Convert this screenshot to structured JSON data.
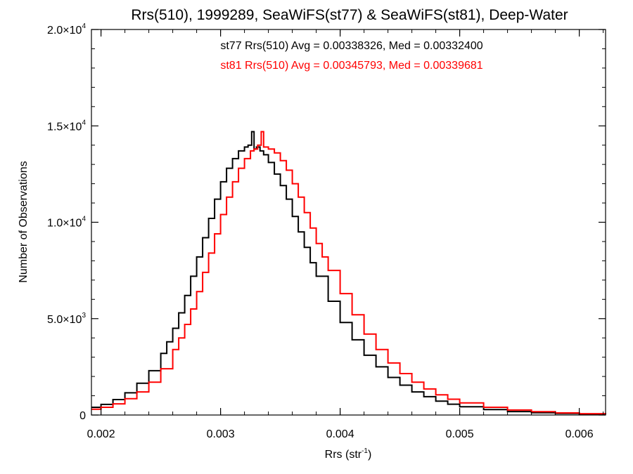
{
  "chart_data": {
    "type": "line",
    "title": "Rrs(510), 1999289, SeaWiFS(st77) & SeaWiFS(st81), Deep-Water",
    "xlabel": "Rrs (str",
    "xlabel_sup": "-1",
    "xlabel_close": ")",
    "ylabel": "Number of Observations",
    "xlim": [
      0.00192,
      0.00622
    ],
    "ylim": [
      0,
      20000
    ],
    "x_ticks": [
      {
        "value": 0.002,
        "label": "0.002"
      },
      {
        "value": 0.003,
        "label": "0.003"
      },
      {
        "value": 0.004,
        "label": "0.004"
      },
      {
        "value": 0.005,
        "label": "0.005"
      },
      {
        "value": 0.006,
        "label": "0.006"
      }
    ],
    "y_ticks": [
      {
        "value": 0,
        "label": "0",
        "sup": ""
      },
      {
        "value": 5000,
        "label": "5.0×10",
        "sup": "3"
      },
      {
        "value": 10000,
        "label": "1.0×10",
        "sup": "4"
      },
      {
        "value": 15000,
        "label": "1.5×10",
        "sup": "4"
      },
      {
        "value": 20000,
        "label": "2.0×10",
        "sup": "4"
      }
    ],
    "grid": false,
    "annotations": [
      {
        "text": "st77 Rrs(510) Avg = 0.00338326, Med = 0.00332400",
        "color": "#000000"
      },
      {
        "text": "st81 Rrs(510) Avg = 0.00345793, Med = 0.00339681",
        "color": "#ff0000"
      }
    ],
    "series": [
      {
        "color": "#000000",
        "style": "step",
        "x": [
          0.00192,
          0.002,
          0.0021,
          0.0022,
          0.0023,
          0.0024,
          0.0025,
          0.00255,
          0.0026,
          0.00265,
          0.0027,
          0.00275,
          0.0028,
          0.00285,
          0.0029,
          0.00295,
          0.003,
          0.00305,
          0.0031,
          0.00315,
          0.0032,
          0.00323,
          0.00326,
          0.00328,
          0.0033,
          0.00333,
          0.00336,
          0.0034,
          0.00345,
          0.0035,
          0.00355,
          0.0036,
          0.00365,
          0.0037,
          0.00375,
          0.0038,
          0.0039,
          0.004,
          0.0041,
          0.0042,
          0.0043,
          0.0044,
          0.0045,
          0.0046,
          0.0047,
          0.0048,
          0.0049,
          0.005,
          0.0052,
          0.0054,
          0.0056,
          0.0058,
          0.006,
          0.00622
        ],
        "values": [
          400,
          550,
          800,
          1150,
          1650,
          2300,
          3200,
          3800,
          4500,
          5300,
          6200,
          7200,
          8200,
          9200,
          10200,
          11200,
          12100,
          12800,
          13300,
          13700,
          13900,
          14000,
          14700,
          13800,
          13900,
          13700,
          13500,
          13100,
          12500,
          11900,
          11200,
          10300,
          9500,
          8700,
          7900,
          7200,
          5900,
          4800,
          3900,
          3100,
          2500,
          1950,
          1550,
          1200,
          950,
          720,
          560,
          430,
          280,
          180,
          120,
          80,
          50,
          30
        ]
      },
      {
        "color": "#ff0000",
        "style": "step",
        "x": [
          0.00192,
          0.002,
          0.0021,
          0.0022,
          0.0023,
          0.0024,
          0.0025,
          0.0026,
          0.00265,
          0.0027,
          0.00275,
          0.0028,
          0.00285,
          0.0029,
          0.00295,
          0.003,
          0.00305,
          0.0031,
          0.00315,
          0.0032,
          0.00325,
          0.00328,
          0.00331,
          0.00334,
          0.00336,
          0.0034,
          0.00345,
          0.0035,
          0.00355,
          0.0036,
          0.00365,
          0.0037,
          0.00375,
          0.0038,
          0.00385,
          0.0039,
          0.004,
          0.0041,
          0.0042,
          0.0043,
          0.0044,
          0.0045,
          0.0046,
          0.0047,
          0.0048,
          0.0049,
          0.005,
          0.0052,
          0.0054,
          0.0056,
          0.0058,
          0.006,
          0.00622
        ],
        "values": [
          300,
          400,
          580,
          850,
          1200,
          1700,
          2400,
          3400,
          4000,
          4700,
          5500,
          6400,
          7400,
          8400,
          9400,
          10400,
          11300,
          12100,
          12800,
          13300,
          13700,
          13800,
          14000,
          14700,
          13900,
          13800,
          13600,
          13200,
          12700,
          12000,
          11300,
          10500,
          9700,
          8900,
          8200,
          7500,
          6300,
          5200,
          4200,
          3400,
          2700,
          2150,
          1700,
          1350,
          1050,
          820,
          630,
          400,
          260,
          170,
          110,
          70,
          40
        ]
      }
    ]
  }
}
